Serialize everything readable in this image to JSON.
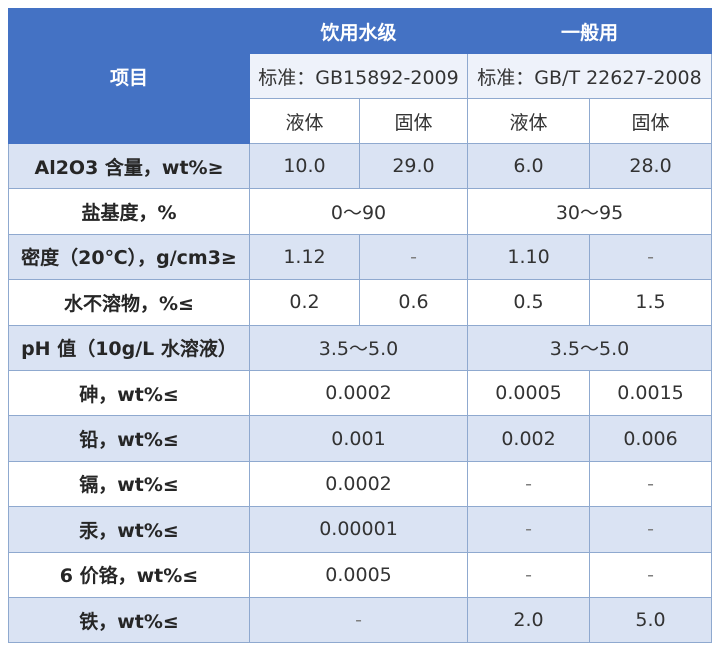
{
  "header": {
    "item_label": "项目",
    "group_drinking": "饮用水级",
    "group_general": "一般用",
    "standard_drinking": "标准：GB15892-2009",
    "standard_general": "标准：GB/T 22627-2008",
    "liquid": "液体",
    "solid": "固体"
  },
  "rows": [
    {
      "label": "Al2O3 含量，wt%≥",
      "values": [
        "10.0",
        "29.0",
        "6.0",
        "28.0"
      ]
    },
    {
      "label": "盐基度，%",
      "drinking_merged": "0～90",
      "general_merged": "30～95"
    },
    {
      "label": "密度（20℃），g/cm3≥",
      "values": [
        "1.12",
        "-",
        "1.10",
        "-"
      ]
    },
    {
      "label": "水不溶物，%≤",
      "values": [
        "0.2",
        "0.6",
        "0.5",
        "1.5"
      ]
    },
    {
      "label": "pH 值（10g/L 水溶液）",
      "drinking_merged": "3.5～5.0",
      "general_merged": "3.5～5.0"
    },
    {
      "label": "砷，wt%≤",
      "drinking_merged": "0.0002",
      "values_general": [
        "0.0005",
        "0.0015"
      ]
    },
    {
      "label": "铅，wt%≤",
      "drinking_merged": "0.001",
      "values_general": [
        "0.002",
        "0.006"
      ]
    },
    {
      "label": "镉，wt%≤",
      "drinking_merged": "0.0002",
      "values_general": [
        "-",
        "-"
      ]
    },
    {
      "label": "汞，wt%≤",
      "drinking_merged": "0.00001",
      "values_general": [
        "-",
        "-"
      ]
    },
    {
      "label": "6 价铬，wt%≤",
      "drinking_merged": "0.0005",
      "values_general": [
        "-",
        "-"
      ]
    },
    {
      "label": "铁，wt%≤",
      "drinking_merged": "-",
      "values_general": [
        "2.0",
        "5.0"
      ]
    }
  ],
  "colors": {
    "header_blue": "#4472c4",
    "row_shade": "#dae3f3",
    "border": "#8fa9cf"
  }
}
